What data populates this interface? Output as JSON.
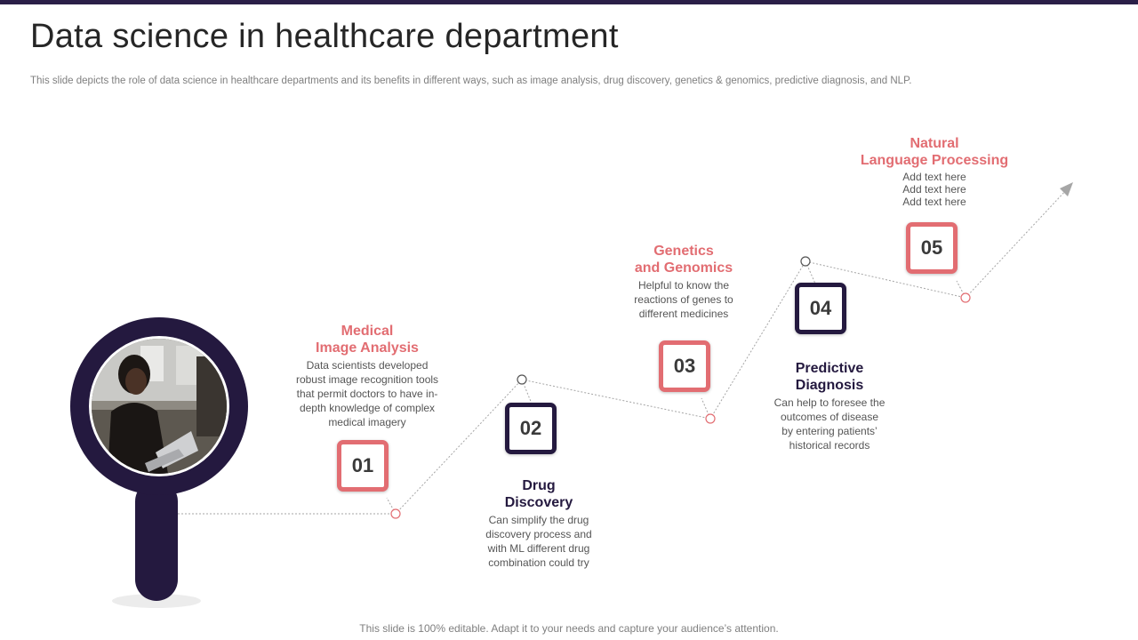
{
  "header": {
    "title": "Data science in healthcare department",
    "subtitle": "This slide depicts the role of data science in healthcare departments and its benefits in different ways, such as image analysis, drug discovery, genetics & genomics, predictive diagnosis, and NLP."
  },
  "steps": [
    {
      "number": "01",
      "heading_line1": "Medical",
      "heading_line2": "Image Analysis",
      "desc": [
        "Data scientists developed",
        "robust image recognition tools",
        "that permit doctors to have in-",
        "depth knowledge of complex",
        "medical imagery"
      ]
    },
    {
      "number": "02",
      "heading_line1": "Drug",
      "heading_line2": "Discovery",
      "desc": [
        "Can simplify the drug",
        "discovery process and",
        "with ML different drug",
        "combination could try"
      ]
    },
    {
      "number": "03",
      "heading_line1": "Genetics",
      "heading_line2": "and Genomics",
      "desc": [
        "Helpful to know the",
        "reactions of genes to",
        "different medicines"
      ]
    },
    {
      "number": "04",
      "heading_line1": "Predictive",
      "heading_line2": "Diagnosis",
      "desc": [
        "Can help to foresee the",
        "outcomes of disease",
        "by entering patients’",
        "historical records"
      ]
    },
    {
      "number": "05",
      "heading_line1": "Natural",
      "heading_line2": "Language Processing",
      "desc": [
        "Add text here",
        "Add text here",
        "Add text here"
      ]
    }
  ],
  "footer": {
    "text": "This slide is 100% editable. Adapt it to your needs and capture your audience’s attention."
  },
  "colors": {
    "accent": "#e26d72",
    "navy": "#24193f",
    "connector": "#a6a6a6"
  },
  "icons": {
    "magnifier": "magnifier-icon",
    "arrow": "arrow-head-icon"
  }
}
